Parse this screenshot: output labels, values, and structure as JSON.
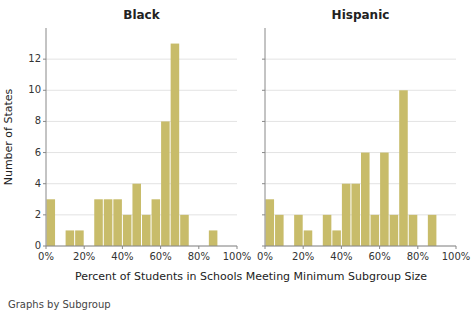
{
  "chart_data": [
    {
      "type": "histogram",
      "title": "Black",
      "bins": [
        0,
        5,
        10,
        15,
        20,
        25,
        30,
        35,
        40,
        45,
        50,
        55,
        60,
        65,
        70,
        75,
        80,
        85,
        90,
        95,
        100
      ],
      "values": [
        3,
        0,
        1,
        1,
        0,
        3,
        3,
        3,
        2,
        4,
        2,
        3,
        8,
        13,
        2,
        0,
        0,
        1,
        0,
        0
      ],
      "color": "#C8BC6A",
      "xlim": [
        0,
        100
      ],
      "xticks": [
        {
          "value": 0,
          "label": "0%"
        },
        {
          "value": 20,
          "label": "20%"
        },
        {
          "value": 40,
          "label": "40%"
        },
        {
          "value": 60,
          "label": "60%"
        },
        {
          "value": 80,
          "label": "80%"
        },
        {
          "value": 100,
          "label": "100%"
        }
      ],
      "ylim": [
        0,
        14
      ],
      "yticks": [
        0,
        2,
        4,
        6,
        8,
        10,
        12
      ],
      "grid": true,
      "ylabel": "Number of States",
      "xlabel": "Percent of Students in Schools Meeting Minimum Subgroup Size",
      "caption": "Graphs by Subgroup"
    },
    {
      "type": "histogram",
      "title": "Hispanic",
      "bins": [
        0,
        5,
        10,
        15,
        20,
        25,
        30,
        35,
        40,
        45,
        50,
        55,
        60,
        65,
        70,
        75,
        80,
        85,
        90,
        95,
        100
      ],
      "values": [
        3,
        2,
        0,
        2,
        1,
        0,
        2,
        1,
        4,
        4,
        6,
        2,
        6,
        2,
        10,
        2,
        0,
        2,
        0,
        0
      ],
      "color": "#C8BC6A",
      "xlim": [
        0,
        100
      ],
      "xticks": [
        {
          "value": 0,
          "label": "0%"
        },
        {
          "value": 20,
          "label": "20%"
        },
        {
          "value": 40,
          "label": "40%"
        },
        {
          "value": 60,
          "label": "60%"
        },
        {
          "value": 80,
          "label": "80%"
        },
        {
          "value": 100,
          "label": "100%"
        }
      ],
      "ylim": [
        0,
        14
      ],
      "yticks": [
        0,
        2,
        4,
        6,
        8,
        10,
        12
      ],
      "grid": true,
      "tick_labels": "x"
    }
  ]
}
